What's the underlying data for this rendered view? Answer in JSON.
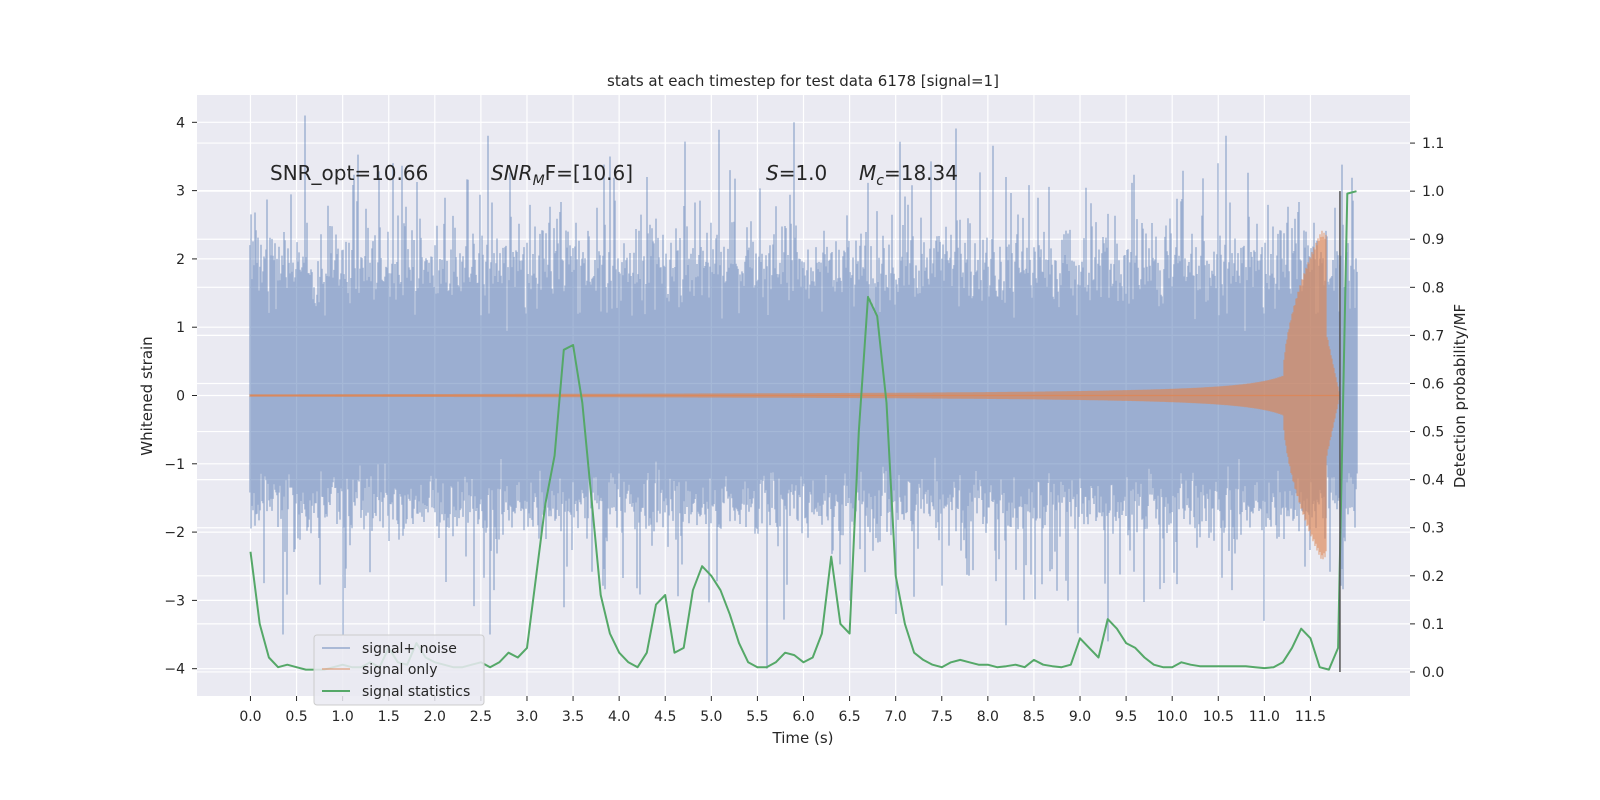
{
  "chart_data": {
    "type": "line",
    "title": "stats at each timestep for test data 6178 [signal=1]",
    "xlabel": "Time (s)",
    "ylabel": "Whitened strain",
    "y2label": "Detection probability/MF",
    "xlim": [
      -0.58,
      12.58
    ],
    "ylim": [
      -4.4,
      4.4
    ],
    "y2lim": [
      -0.05,
      1.2
    ],
    "x_ticks": [
      0.0,
      0.5,
      1.0,
      1.5,
      2.0,
      2.5,
      3.0,
      3.5,
      4.0,
      4.5,
      5.0,
      5.5,
      6.0,
      6.5,
      7.0,
      7.5,
      8.0,
      8.5,
      9.0,
      9.5,
      10.0,
      10.5,
      11.0,
      11.5
    ],
    "x_tick_labels": [
      "0.0",
      "0.5",
      "1.0",
      "1.5",
      "2.0",
      "2.5",
      "3.0",
      "3.5",
      "4.0",
      "4.5",
      "5.0",
      "5.5",
      "6.0",
      "6.5",
      "7.0",
      "7.5",
      "8.0",
      "8.5",
      "9.0",
      "9.5",
      "10.0",
      "10.5",
      "11.0",
      "11.5"
    ],
    "y_ticks": [
      -4,
      -3,
      -2,
      -1,
      0,
      1,
      2,
      3,
      4
    ],
    "y_tick_labels": [
      "−4",
      "−3",
      "−2",
      "−1",
      "0",
      "1",
      "2",
      "3",
      "4"
    ],
    "y2_ticks": [
      0.0,
      0.1,
      0.2,
      0.3,
      0.4,
      0.5,
      0.6,
      0.7,
      0.8,
      0.9,
      1.0,
      1.1
    ],
    "y2_tick_labels": [
      "0.0",
      "0.1",
      "0.2",
      "0.3",
      "0.4",
      "0.5",
      "0.6",
      "0.7",
      "0.8",
      "0.9",
      "1.0",
      "1.1"
    ],
    "grid": true,
    "legend_position": "lower-left",
    "annotations": {
      "snr_opt": "SNR_opt=10.66",
      "snr_mf_sym": "SNR",
      "snr_mf_sub": "M",
      "snr_mf_rest": "F=[10.6]",
      "s_sym": "S",
      "s_rest": "=1.0",
      "mc_sym": "M",
      "mc_sub": "c",
      "mc_rest": "=18.34"
    },
    "series": [
      {
        "name": "signal+ noise",
        "color": "#4c72b0",
        "axis": "left",
        "x_range": [
          0.0,
          12.0
        ],
        "envelope_typical": [
          -1.6,
          1.9
        ],
        "peaks": [
          {
            "x": 0.59,
            "y": 4.1
          },
          {
            "x": 5.9,
            "y": 4.0
          },
          {
            "x": 1.0,
            "y": -3.5
          },
          {
            "x": 5.6,
            "y": -4.0
          },
          {
            "x": 9.3,
            "y": -3.6
          },
          {
            "x": 2.6,
            "y": -3.5
          },
          {
            "x": 0.35,
            "y": -3.5
          },
          {
            "x": 3.9,
            "y": 3.5
          },
          {
            "x": 5.2,
            "y": 3.3
          },
          {
            "x": 10.5,
            "y": 3.4
          },
          {
            "x": 1.55,
            "y": 3.4
          },
          {
            "x": 4.3,
            "y": 3.2
          },
          {
            "x": 7.0,
            "y": -3.2
          },
          {
            "x": 11.0,
            "y": -3.3
          },
          {
            "x": 8.2,
            "y": 3.2
          },
          {
            "x": 6.5,
            "y": -3.0
          },
          {
            "x": 3.4,
            "y": -3.1
          }
        ]
      },
      {
        "name": "signal only",
        "color": "#dd8452",
        "axis": "left",
        "chirp": {
          "start": 0.0,
          "merger": 11.67,
          "end": 11.82,
          "peak_amp": 2.35,
          "early_amp": 0.02
        }
      },
      {
        "name": "signal statistics",
        "color": "#55a868",
        "axis": "right",
        "x": [
          0.0,
          0.1,
          0.2,
          0.3,
          0.4,
          0.5,
          0.6,
          0.7,
          0.8,
          0.9,
          1.0,
          1.1,
          1.2,
          1.3,
          1.4,
          1.5,
          1.6,
          1.7,
          1.8,
          1.9,
          2.0,
          2.1,
          2.2,
          2.3,
          2.4,
          2.5,
          2.6,
          2.7,
          2.8,
          2.9,
          3.0,
          3.1,
          3.2,
          3.3,
          3.4,
          3.5,
          3.6,
          3.7,
          3.8,
          3.9,
          4.0,
          4.1,
          4.2,
          4.3,
          4.4,
          4.5,
          4.6,
          4.7,
          4.8,
          4.9,
          5.0,
          5.1,
          5.2,
          5.3,
          5.4,
          5.5,
          5.6,
          5.7,
          5.8,
          5.9,
          6.0,
          6.1,
          6.2,
          6.3,
          6.4,
          6.5,
          6.6,
          6.7,
          6.8,
          6.9,
          7.0,
          7.1,
          7.2,
          7.3,
          7.4,
          7.5,
          7.6,
          7.7,
          7.8,
          7.9,
          8.0,
          8.1,
          8.2,
          8.3,
          8.4,
          8.5,
          8.6,
          8.7,
          8.8,
          8.9,
          9.0,
          9.1,
          9.2,
          9.3,
          9.4,
          9.5,
          9.6,
          9.7,
          9.8,
          9.9,
          10.0,
          10.1,
          10.2,
          10.3,
          10.4,
          10.5,
          10.6,
          10.7,
          10.8,
          10.9,
          11.0,
          11.1,
          11.2,
          11.3,
          11.4,
          11.5,
          11.6,
          11.7,
          11.8,
          11.9,
          12.0
        ],
        "y": [
          0.25,
          0.1,
          0.03,
          0.01,
          0.015,
          0.01,
          0.005,
          0.005,
          0.005,
          0.01,
          0.015,
          0.01,
          0.01,
          0.02,
          0.01,
          0.05,
          0.02,
          0.015,
          0.06,
          0.03,
          0.02,
          0.015,
          0.01,
          0.01,
          0.015,
          0.02,
          0.01,
          0.02,
          0.04,
          0.03,
          0.05,
          0.2,
          0.35,
          0.45,
          0.67,
          0.68,
          0.56,
          0.36,
          0.16,
          0.08,
          0.04,
          0.02,
          0.01,
          0.04,
          0.14,
          0.16,
          0.04,
          0.05,
          0.17,
          0.22,
          0.2,
          0.17,
          0.12,
          0.06,
          0.02,
          0.01,
          0.01,
          0.02,
          0.04,
          0.035,
          0.02,
          0.03,
          0.08,
          0.24,
          0.1,
          0.08,
          0.5,
          0.78,
          0.74,
          0.56,
          0.2,
          0.1,
          0.04,
          0.025,
          0.015,
          0.01,
          0.02,
          0.025,
          0.02,
          0.015,
          0.015,
          0.01,
          0.012,
          0.015,
          0.01,
          0.025,
          0.015,
          0.012,
          0.01,
          0.015,
          0.07,
          0.05,
          0.03,
          0.11,
          0.09,
          0.06,
          0.05,
          0.03,
          0.015,
          0.01,
          0.01,
          0.02,
          0.015,
          0.012,
          0.012,
          0.012,
          0.012,
          0.012,
          0.012,
          0.01,
          0.008,
          0.01,
          0.02,
          0.05,
          0.09,
          0.07,
          0.01,
          0.005,
          0.05,
          0.995,
          1.0
        ]
      }
    ],
    "vertical_line": {
      "x": 11.82,
      "color": "#555555"
    }
  }
}
